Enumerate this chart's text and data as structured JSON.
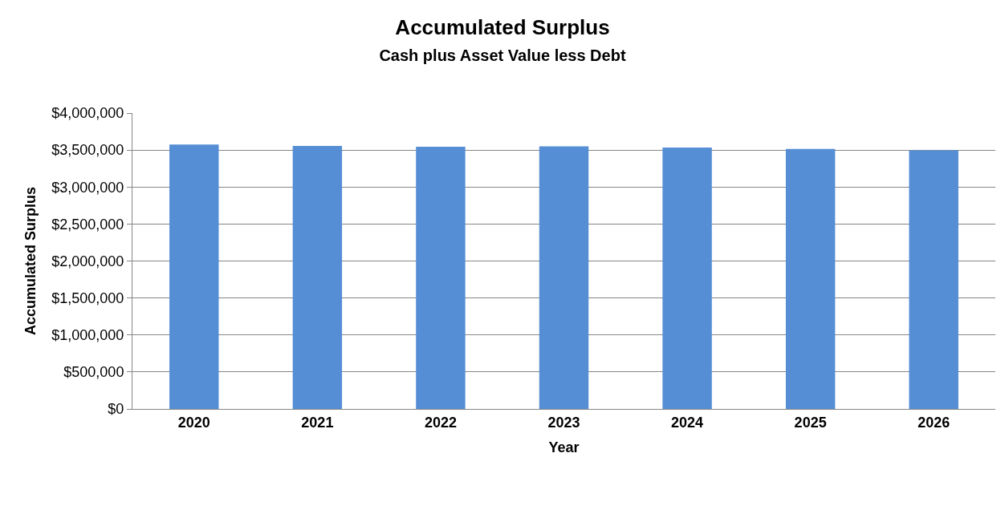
{
  "chart_data": {
    "type": "bar",
    "title": "Accumulated Surplus",
    "subtitle": "Cash plus Asset Value less Debt",
    "xlabel": "Year",
    "ylabel": "Accumulated Surplus",
    "categories": [
      "2020",
      "2021",
      "2022",
      "2023",
      "2024",
      "2025",
      "2026"
    ],
    "values": [
      3575000,
      3555000,
      3545000,
      3550000,
      3535000,
      3515000,
      3495000
    ],
    "color": "#558ed5",
    "ylim": [
      0,
      4000000
    ],
    "yticks": [
      {
        "value": 0,
        "label": "$0"
      },
      {
        "value": 500000,
        "label": "$500,000"
      },
      {
        "value": 1000000,
        "label": "$1,000,000"
      },
      {
        "value": 1500000,
        "label": "$1,500,000"
      },
      {
        "value": 2000000,
        "label": "$2,000,000"
      },
      {
        "value": 2500000,
        "label": "$2,500,000"
      },
      {
        "value": 3000000,
        "label": "$3,000,000"
      },
      {
        "value": 3500000,
        "label": "$3,500,000"
      },
      {
        "value": 4000000,
        "label": "$4,000,000"
      }
    ],
    "grid": "y"
  }
}
